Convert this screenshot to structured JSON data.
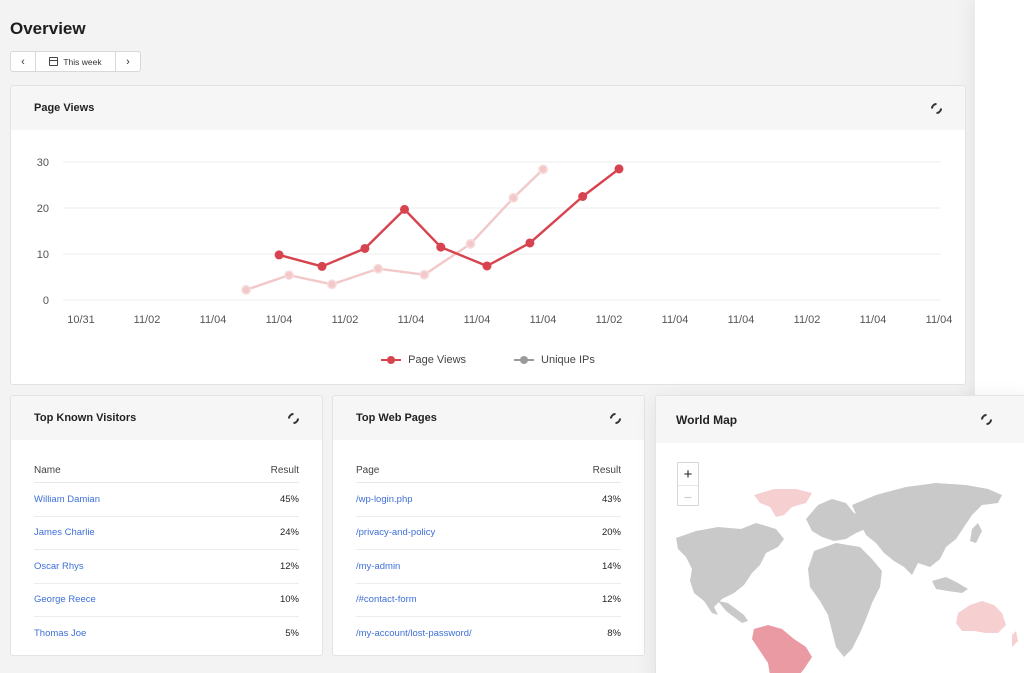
{
  "page": {
    "title": "Overview"
  },
  "date_nav": {
    "prev": "‹",
    "next": "›",
    "label": "This week"
  },
  "page_views_card": {
    "title": "Page Views",
    "icon": "refresh-icon",
    "colors": {
      "page_views": "#d7434e",
      "unique_ips": "#f2c8c9",
      "grid": "#ececec"
    }
  },
  "chart_data": {
    "type": "line",
    "categories": [
      "10/31",
      "11/02",
      "11/04",
      "11/04",
      "11/02",
      "11/04",
      "11/04",
      "11/04",
      "11/02",
      "11/04",
      "11/04",
      "11/02",
      "11/04",
      "11/04"
    ],
    "yticks": [
      "0",
      "10",
      "20",
      "30"
    ],
    "ylim": [
      0,
      30
    ],
    "series": [
      {
        "name": "Page Views",
        "x": [
          2.85,
          3.5,
          4.15,
          4.75,
          5.3,
          6.0,
          6.65,
          7.45,
          8.0,
          8.6
        ],
        "values": [
          9.8,
          7.3,
          11.2,
          19.7,
          11.5,
          7.4,
          12.4,
          22.5,
          28.5,
          null
        ]
      },
      {
        "name": "Unique IPs",
        "x": [
          2.35,
          3.0,
          3.65,
          4.35,
          5.05,
          5.75,
          6.4,
          6.85,
          7.4
        ],
        "values": [
          2.2,
          5.4,
          3.4,
          6.8,
          5.5,
          12.2,
          22.2,
          28.4,
          null
        ]
      }
    ],
    "legend": [
      "Page Views",
      "Unique IPs"
    ],
    "grid": true,
    "legend_position": "bottom"
  },
  "top_visitors": {
    "title": "Top Known Visitors",
    "col_name": "Name",
    "col_result": "Result",
    "rows": [
      {
        "name": "William Damian",
        "result": "45%"
      },
      {
        "name": "James Charlie",
        "result": "24%"
      },
      {
        "name": "Oscar Rhys",
        "result": "12%"
      },
      {
        "name": "George Reece",
        "result": "10%"
      },
      {
        "name": "Thomas Joe",
        "result": "5%"
      }
    ]
  },
  "top_pages": {
    "title": "Top Web Pages",
    "col_name": "Page",
    "col_result": "Result",
    "rows": [
      {
        "name": "/wp-login.php",
        "result": "43%"
      },
      {
        "name": "/privacy-and-policy",
        "result": "20%"
      },
      {
        "name": "/my-admin",
        "result": "14%"
      },
      {
        "name": "/#contact-form",
        "result": "12%"
      },
      {
        "name": "/my-account/lost-password/",
        "result": "8%"
      }
    ]
  },
  "world_map": {
    "title": "World Map",
    "zoom_in": "+",
    "zoom_out": "−",
    "colors": {
      "land": "#c9c9c9",
      "south_america": "#ea9aa2",
      "greenland": "#f6cfd1",
      "australia": "#f6cfd1"
    }
  }
}
